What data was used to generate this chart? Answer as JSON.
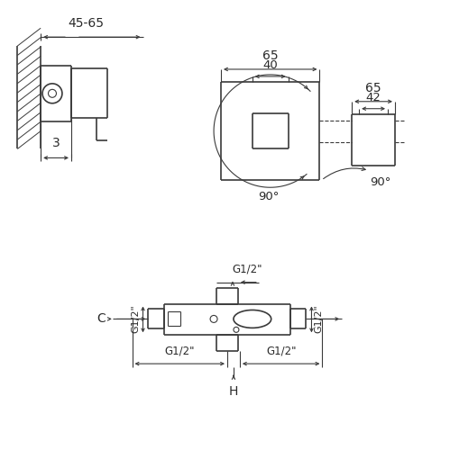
{
  "bg_color": "#ffffff",
  "lc": "#3a3a3a",
  "tc": "#2a2a2a",
  "fig_w": 4.99,
  "fig_h": 5.0,
  "dpi": 100,
  "labels": {
    "dim_45_65": "45-65",
    "dim_3": "3",
    "dim_65L": "65",
    "dim_65R": "65",
    "dim_40": "40",
    "dim_42": "42",
    "deg_90L": "90°",
    "deg_90R": "90°",
    "G12_tl": "G1/2\"",
    "G12_tm": "G1/2\"",
    "G12_tr": "G1/2\"",
    "G12_bl": "G1/2\"",
    "G12_br": "G1/2\"",
    "C": "C",
    "H": "H"
  }
}
